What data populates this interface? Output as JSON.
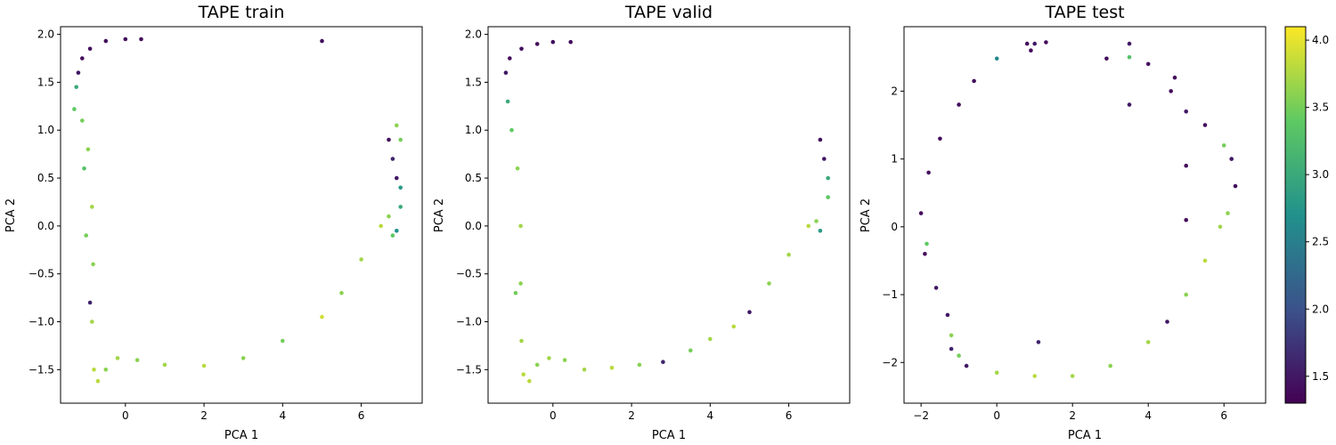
{
  "chart_data": [
    {
      "type": "scatter",
      "title": "TAPE train",
      "xlabel": "PCA 1",
      "ylabel": "PCA 2",
      "xlim": [
        -1.65,
        7.55
      ],
      "ylim": [
        -1.85,
        2.08
      ],
      "xticks": [
        0,
        2,
        4,
        6
      ],
      "xtick_labels": [
        "0",
        "2",
        "4",
        "6"
      ],
      "yticks": [
        -1.5,
        -1.0,
        -0.5,
        0.0,
        0.5,
        1.0,
        1.5,
        2.0
      ],
      "ytick_labels": [
        "−1.5",
        "−1.0",
        "−0.5",
        "0.0",
        "0.5",
        "1.0",
        "1.5",
        "2.0"
      ],
      "colormap": "viridis",
      "points": [
        [
          -1.3,
          1.22,
          3.4
        ],
        [
          -1.2,
          1.6,
          1.5
        ],
        [
          -1.1,
          1.75,
          1.4
        ],
        [
          -0.9,
          1.85,
          1.4
        ],
        [
          -0.5,
          1.93,
          1.4
        ],
        [
          0.0,
          1.95,
          1.4
        ],
        [
          0.4,
          1.95,
          1.4
        ],
        [
          5.0,
          1.93,
          1.4
        ],
        [
          -1.25,
          1.45,
          3.0
        ],
        [
          -1.1,
          1.1,
          3.5
        ],
        [
          -0.95,
          0.8,
          3.6
        ],
        [
          -0.85,
          0.2,
          3.7
        ],
        [
          -0.82,
          -0.4,
          3.6
        ],
        [
          -0.85,
          -1.0,
          3.7
        ],
        [
          -0.8,
          -1.5,
          3.8
        ],
        [
          -0.7,
          -1.62,
          3.8
        ],
        [
          -0.5,
          -1.5,
          3.6
        ],
        [
          -0.2,
          -1.38,
          3.7
        ],
        [
          0.3,
          -1.4,
          3.6
        ],
        [
          1.0,
          -1.45,
          3.7
        ],
        [
          2.0,
          -1.46,
          3.8
        ],
        [
          3.0,
          -1.38,
          3.6
        ],
        [
          4.0,
          -1.2,
          3.5
        ],
        [
          5.0,
          -0.95,
          3.9
        ],
        [
          5.5,
          -0.7,
          3.6
        ],
        [
          6.0,
          -0.35,
          3.7
        ],
        [
          6.5,
          0.0,
          3.8
        ],
        [
          6.7,
          0.1,
          3.6
        ],
        [
          6.7,
          0.9,
          1.4
        ],
        [
          6.8,
          0.7,
          1.6
        ],
        [
          6.9,
          0.5,
          1.5
        ],
        [
          7.0,
          0.4,
          2.8
        ],
        [
          7.0,
          0.2,
          3.0
        ],
        [
          6.9,
          -0.05,
          2.7
        ],
        [
          6.8,
          -0.1,
          3.4
        ],
        [
          6.9,
          1.05,
          3.6
        ],
        [
          7.0,
          0.9,
          3.5
        ],
        [
          -1.0,
          -0.1,
          3.5
        ],
        [
          -0.9,
          -0.8,
          1.6
        ],
        [
          -1.05,
          0.6,
          3.3
        ]
      ]
    },
    {
      "type": "scatter",
      "title": "TAPE valid",
      "xlabel": "PCA 1",
      "ylabel": "PCA 2",
      "xlim": [
        -1.65,
        7.55
      ],
      "ylim": [
        -1.85,
        2.08
      ],
      "xticks": [
        0,
        2,
        4,
        6
      ],
      "xtick_labels": [
        "0",
        "2",
        "4",
        "6"
      ],
      "yticks": [
        -1.5,
        -1.0,
        -0.5,
        0.0,
        0.5,
        1.0,
        1.5,
        2.0
      ],
      "ytick_labels": [
        "−1.5",
        "−1.0",
        "−0.5",
        "0.0",
        "0.5",
        "1.0",
        "1.5",
        "2.0"
      ],
      "colormap": "viridis",
      "points": [
        [
          -1.2,
          1.6,
          1.5
        ],
        [
          -1.1,
          1.75,
          1.4
        ],
        [
          -0.8,
          1.85,
          1.4
        ],
        [
          -0.4,
          1.9,
          1.4
        ],
        [
          0.0,
          1.92,
          1.4
        ],
        [
          0.45,
          1.92,
          1.4
        ],
        [
          -1.15,
          1.3,
          3.0
        ],
        [
          -1.05,
          1.0,
          3.4
        ],
        [
          -0.9,
          0.6,
          3.6
        ],
        [
          -0.82,
          0.0,
          3.7
        ],
        [
          -0.82,
          -0.6,
          3.6
        ],
        [
          -0.8,
          -1.2,
          3.7
        ],
        [
          -0.75,
          -1.55,
          3.8
        ],
        [
          -0.6,
          -1.62,
          3.8
        ],
        [
          -0.4,
          -1.45,
          3.6
        ],
        [
          -0.1,
          -1.38,
          3.7
        ],
        [
          0.3,
          -1.4,
          3.6
        ],
        [
          0.8,
          -1.5,
          3.7
        ],
        [
          1.5,
          -1.48,
          3.8
        ],
        [
          2.2,
          -1.45,
          3.6
        ],
        [
          2.8,
          -1.42,
          1.6
        ],
        [
          3.5,
          -1.3,
          3.5
        ],
        [
          4.0,
          -1.18,
          3.7
        ],
        [
          4.6,
          -1.05,
          3.8
        ],
        [
          5.0,
          -0.9,
          1.5
        ],
        [
          5.5,
          -0.6,
          3.6
        ],
        [
          6.0,
          -0.3,
          3.7
        ],
        [
          6.5,
          0.0,
          3.8
        ],
        [
          6.7,
          0.05,
          3.6
        ],
        [
          6.8,
          0.9,
          1.4
        ],
        [
          6.9,
          0.7,
          1.5
        ],
        [
          7.0,
          0.5,
          3.0
        ],
        [
          7.0,
          0.3,
          3.4
        ],
        [
          6.8,
          -0.05,
          2.8
        ],
        [
          -0.95,
          -0.7,
          3.5
        ]
      ]
    },
    {
      "type": "scatter",
      "title": "TAPE test",
      "xlabel": "PCA 1",
      "ylabel": "PCA 2",
      "xlim": [
        -2.45,
        7.1
      ],
      "ylim": [
        -2.6,
        2.95
      ],
      "xticks": [
        -2,
        0,
        2,
        4,
        6
      ],
      "xtick_labels": [
        "−2",
        "0",
        "2",
        "4",
        "6"
      ],
      "yticks": [
        -2,
        -1,
        0,
        1,
        2
      ],
      "ytick_labels": [
        "−2",
        "−1",
        "0",
        "1",
        "2"
      ],
      "colormap": "viridis",
      "points": [
        [
          -0.6,
          2.15,
          1.4
        ],
        [
          -1.0,
          1.8,
          1.4
        ],
        [
          -1.5,
          1.3,
          1.4
        ],
        [
          -1.8,
          0.8,
          1.4
        ],
        [
          -2.0,
          0.2,
          1.4
        ],
        [
          -1.9,
          -0.4,
          1.4
        ],
        [
          -1.6,
          -0.9,
          1.5
        ],
        [
          -1.3,
          -1.3,
          1.5
        ],
        [
          -1.2,
          -1.6,
          3.6
        ],
        [
          -1.2,
          -1.8,
          1.6
        ],
        [
          -0.8,
          -2.05,
          1.5
        ],
        [
          0.0,
          -2.15,
          3.7
        ],
        [
          1.0,
          -2.2,
          3.8
        ],
        [
          2.0,
          -2.2,
          3.7
        ],
        [
          3.0,
          -2.05,
          3.6
        ],
        [
          4.0,
          -1.7,
          3.7
        ],
        [
          4.5,
          -1.4,
          1.5
        ],
        [
          5.0,
          -1.0,
          3.6
        ],
        [
          5.5,
          -0.5,
          3.8
        ],
        [
          5.9,
          0.0,
          3.7
        ],
        [
          6.1,
          0.2,
          3.6
        ],
        [
          6.3,
          0.6,
          1.4
        ],
        [
          6.2,
          1.0,
          1.5
        ],
        [
          6.0,
          1.2,
          3.5
        ],
        [
          5.5,
          1.5,
          1.4
        ],
        [
          5.0,
          1.7,
          1.5
        ],
        [
          4.6,
          2.0,
          1.4
        ],
        [
          4.7,
          2.2,
          1.4
        ],
        [
          0.8,
          2.7,
          1.4
        ],
        [
          1.0,
          2.7,
          1.5
        ],
        [
          1.3,
          2.72,
          1.4
        ],
        [
          0.9,
          2.6,
          1.4
        ],
        [
          2.9,
          2.48,
          1.4
        ],
        [
          3.5,
          2.7,
          1.5
        ],
        [
          3.5,
          2.5,
          3.3
        ],
        [
          3.5,
          1.8,
          1.5
        ],
        [
          4.0,
          2.4,
          1.4
        ],
        [
          5.0,
          0.9,
          1.4
        ],
        [
          5.0,
          0.1,
          1.4
        ],
        [
          0.0,
          2.48,
          2.6
        ],
        [
          1.1,
          -1.7,
          1.6
        ],
        [
          -1.85,
          -0.25,
          3.4
        ],
        [
          -1.0,
          -1.9,
          3.5
        ]
      ]
    }
  ],
  "colorbar": {
    "min": 1.3,
    "max": 4.1,
    "ticks": [
      1.5,
      2.0,
      2.5,
      3.0,
      3.5,
      4.0
    ],
    "tick_labels": [
      "1.5",
      "2.0",
      "2.5",
      "3.0",
      "3.5",
      "4.0"
    ]
  }
}
